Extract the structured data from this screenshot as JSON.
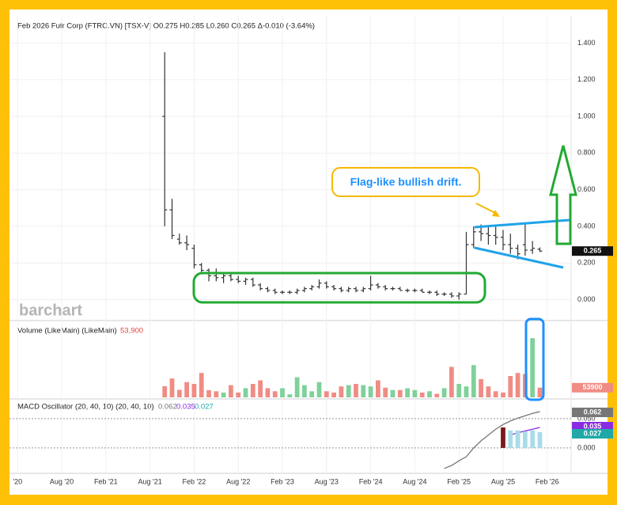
{
  "chart_data": [
    {
      "type": "ohlc",
      "title": "Feb 2026 Futr Corp (FTRC.VN) [TSX-V] O0.275 H0.285 L0.260 C0.265 Δ-0.010 (-3.64%)",
      "watermark": "barchart",
      "annotation": "Flag-like bullish drift.",
      "color": "#333333",
      "ylim": [
        -0.11,
        1.54
      ],
      "yticks": [
        {
          "value": 0,
          "label": "0.000"
        },
        {
          "value": 0.2,
          "label": "0.200"
        },
        {
          "value": 0.4,
          "label": "0.400"
        },
        {
          "value": 0.6,
          "label": "0.600"
        },
        {
          "value": 0.8,
          "label": "0.800"
        },
        {
          "value": 1,
          "label": "1.000"
        },
        {
          "value": 1.2,
          "label": "1.200"
        },
        {
          "value": 1.4,
          "label": "1.400"
        }
      ],
      "x": [
        21,
        22,
        23,
        24,
        25,
        26,
        27,
        28,
        29,
        30,
        31,
        32,
        33,
        34,
        35,
        36,
        37,
        38,
        39,
        40,
        41,
        42,
        43,
        44,
        45,
        46,
        47,
        48,
        49,
        50,
        51,
        52,
        53,
        54,
        55,
        56,
        57,
        58,
        59,
        60,
        61,
        62,
        63,
        64,
        65,
        66,
        67,
        68,
        69,
        70,
        71,
        72
      ],
      "open": [
        1.0,
        0.49,
        0.33,
        0.31,
        0.28,
        0.19,
        0.16,
        0.13,
        0.12,
        0.13,
        0.11,
        0.1,
        0.11,
        0.08,
        0.06,
        0.05,
        0.04,
        0.04,
        0.04,
        0.05,
        0.06,
        0.07,
        0.09,
        0.07,
        0.06,
        0.05,
        0.06,
        0.05,
        0.06,
        0.08,
        0.07,
        0.06,
        0.06,
        0.05,
        0.05,
        0.05,
        0.04,
        0.04,
        0.03,
        0.03,
        0.02,
        0.03,
        0.3,
        0.37,
        0.36,
        0.35,
        0.34,
        0.3,
        0.28,
        0.3,
        0.27,
        0.275
      ],
      "high": [
        1.35,
        0.55,
        0.36,
        0.35,
        0.3,
        0.2,
        0.17,
        0.17,
        0.15,
        0.14,
        0.13,
        0.12,
        0.12,
        0.09,
        0.07,
        0.06,
        0.05,
        0.05,
        0.06,
        0.07,
        0.08,
        0.11,
        0.1,
        0.08,
        0.07,
        0.07,
        0.07,
        0.07,
        0.13,
        0.09,
        0.08,
        0.07,
        0.07,
        0.06,
        0.06,
        0.06,
        0.05,
        0.05,
        0.04,
        0.04,
        0.04,
        0.37,
        0.4,
        0.41,
        0.4,
        0.4,
        0.38,
        0.36,
        0.3,
        0.42,
        0.32,
        0.285
      ],
      "low": [
        0.4,
        0.33,
        0.3,
        0.27,
        0.17,
        0.14,
        0.1,
        0.1,
        0.09,
        0.1,
        0.09,
        0.08,
        0.07,
        0.05,
        0.04,
        0.03,
        0.03,
        0.03,
        0.03,
        0.04,
        0.05,
        0.06,
        0.06,
        0.05,
        0.04,
        0.04,
        0.04,
        0.04,
        0.05,
        0.06,
        0.05,
        0.05,
        0.05,
        0.04,
        0.04,
        0.04,
        0.03,
        0.02,
        0.02,
        0.01,
        0.0,
        0.03,
        0.28,
        0.32,
        0.3,
        0.3,
        0.27,
        0.25,
        0.22,
        0.24,
        0.25,
        0.26
      ],
      "close": [
        0.49,
        0.35,
        0.31,
        0.3,
        0.19,
        0.16,
        0.13,
        0.12,
        0.13,
        0.11,
        0.1,
        0.11,
        0.08,
        0.06,
        0.05,
        0.04,
        0.04,
        0.04,
        0.05,
        0.06,
        0.07,
        0.09,
        0.07,
        0.06,
        0.05,
        0.06,
        0.05,
        0.06,
        0.08,
        0.07,
        0.06,
        0.06,
        0.05,
        0.05,
        0.05,
        0.04,
        0.04,
        0.03,
        0.03,
        0.02,
        0.03,
        0.3,
        0.37,
        0.36,
        0.35,
        0.34,
        0.3,
        0.28,
        0.25,
        0.27,
        0.28,
        0.265
      ]
    },
    {
      "type": "bar",
      "title": "Volume (LikeMain) (LikeMain)",
      "last_value_label": "53,900",
      "up_color": "#7fd19a",
      "down_color": "#f08c84",
      "ylim": [
        0,
        340000
      ],
      "x": [
        21,
        22,
        23,
        24,
        25,
        26,
        27,
        28,
        29,
        30,
        31,
        32,
        33,
        34,
        35,
        36,
        37,
        38,
        39,
        40,
        41,
        42,
        43,
        44,
        45,
        46,
        47,
        48,
        49,
        50,
        51,
        52,
        53,
        54,
        55,
        56,
        57,
        58,
        59,
        60,
        61,
        62,
        63,
        64,
        65,
        66,
        67,
        68,
        69,
        70,
        71,
        72
      ],
      "values": [
        62000,
        105000,
        42000,
        85000,
        75000,
        136000,
        40000,
        34000,
        27000,
        68000,
        27000,
        51000,
        75000,
        95000,
        51000,
        34000,
        51000,
        17000,
        112000,
        68000,
        34000,
        85000,
        34000,
        27000,
        61000,
        68000,
        75000,
        68000,
        61000,
        95000,
        54000,
        41000,
        41000,
        51000,
        41000,
        27000,
        34000,
        20000,
        51000,
        170000,
        75000,
        61000,
        180000,
        102000,
        61000,
        34000,
        27000,
        119000,
        136000,
        130000,
        330000,
        53900
      ]
    },
    {
      "type": "macd",
      "title": "MACD Oscillator (20, 40, 10) (20, 40, 10)",
      "ylim": [
        -0.042,
        0.081
      ],
      "yticks": [
        {
          "value": 0.05,
          "label": "0.050"
        },
        {
          "value": 0,
          "label": "0.000"
        }
      ],
      "xlim": [
        -0.1,
        76.25
      ],
      "xticks": [
        {
          "value": 1,
          "label": "'20"
        },
        {
          "value": 7,
          "label": "Aug '20"
        },
        {
          "value": 13,
          "label": "Feb '21"
        },
        {
          "value": 19,
          "label": "Aug '21"
        },
        {
          "value": 25,
          "label": "Feb '22"
        },
        {
          "value": 31,
          "label": "Aug '22"
        },
        {
          "value": 37,
          "label": "Feb '23"
        },
        {
          "value": 43,
          "label": "Aug '23"
        },
        {
          "value": 49,
          "label": "Feb '24"
        },
        {
          "value": 55,
          "label": "Aug '24"
        },
        {
          "value": 61,
          "label": "Feb '25"
        },
        {
          "value": 67,
          "label": "Aug '25"
        },
        {
          "value": 73,
          "label": "Feb '26"
        }
      ],
      "series": [
        {
          "type": "line",
          "color": "#777777",
          "x": [
            59,
            60,
            61,
            62,
            63,
            64,
            65,
            66,
            67,
            68,
            69,
            70,
            71,
            72
          ],
          "values": [
            -0.035,
            -0.03,
            -0.022,
            -0.015,
            0.0,
            0.012,
            0.022,
            0.032,
            0.04,
            0.046,
            0.051,
            0.055,
            0.059,
            0.062
          ]
        },
        {
          "type": "line",
          "color": "#8a2be2",
          "x": [
            68,
            69,
            70,
            71,
            72
          ],
          "values": [
            0.022,
            0.026,
            0.029,
            0.032,
            0.035
          ]
        },
        {
          "type": "bar",
          "colors": [
            "#7b1a1a",
            "#a8dde8",
            "#a8dde8",
            "#a8dde8",
            "#a8dde8",
            "#a8dde8"
          ],
          "x": [
            67,
            68,
            69,
            70,
            71,
            72
          ],
          "values": [
            0.035,
            0.03,
            0.03,
            0.028,
            0.03,
            0.027
          ]
        }
      ]
    }
  ]
}
